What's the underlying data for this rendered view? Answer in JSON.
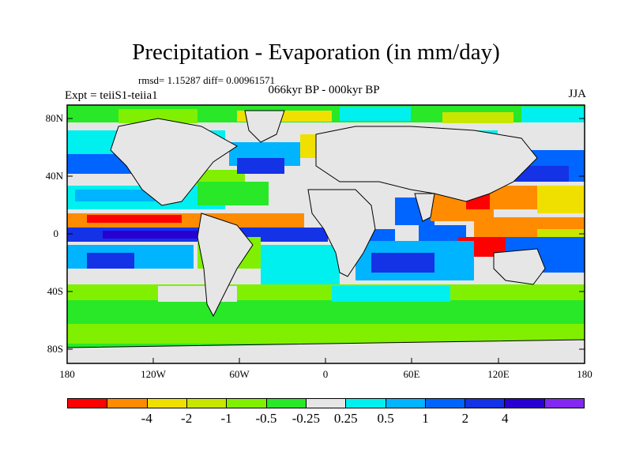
{
  "title": "Precipitation - Evaporation (in mm/day)",
  "stats": "rmsd= 1.15287 diff= 0.00961571",
  "experiment": "Expt = teiiS1-teiia1",
  "period": "066kyr BP - 000kyr BP",
  "season": "JJA",
  "lat_ticks": [
    "80N",
    "40N",
    "0",
    "40S",
    "80S"
  ],
  "lon_ticks": [
    "180",
    "120W",
    "60W",
    "0",
    "60E",
    "120E",
    "180"
  ],
  "colorbar": {
    "colors": [
      "#ff0000",
      "#ff8c00",
      "#f0e000",
      "#c8e600",
      "#80f000",
      "#28e828",
      "#e6e6e6",
      "#00f0f0",
      "#00b4ff",
      "#0064ff",
      "#1432e6",
      "#2800d2",
      "#8228f0"
    ],
    "labels": [
      "-4",
      "-2",
      "-1",
      "-0.5",
      "-0.25",
      "0.25",
      "0.5",
      "1",
      "2",
      "4"
    ]
  },
  "map_colors": {
    "background": "#e6e6e6",
    "coast": "#000000"
  }
}
